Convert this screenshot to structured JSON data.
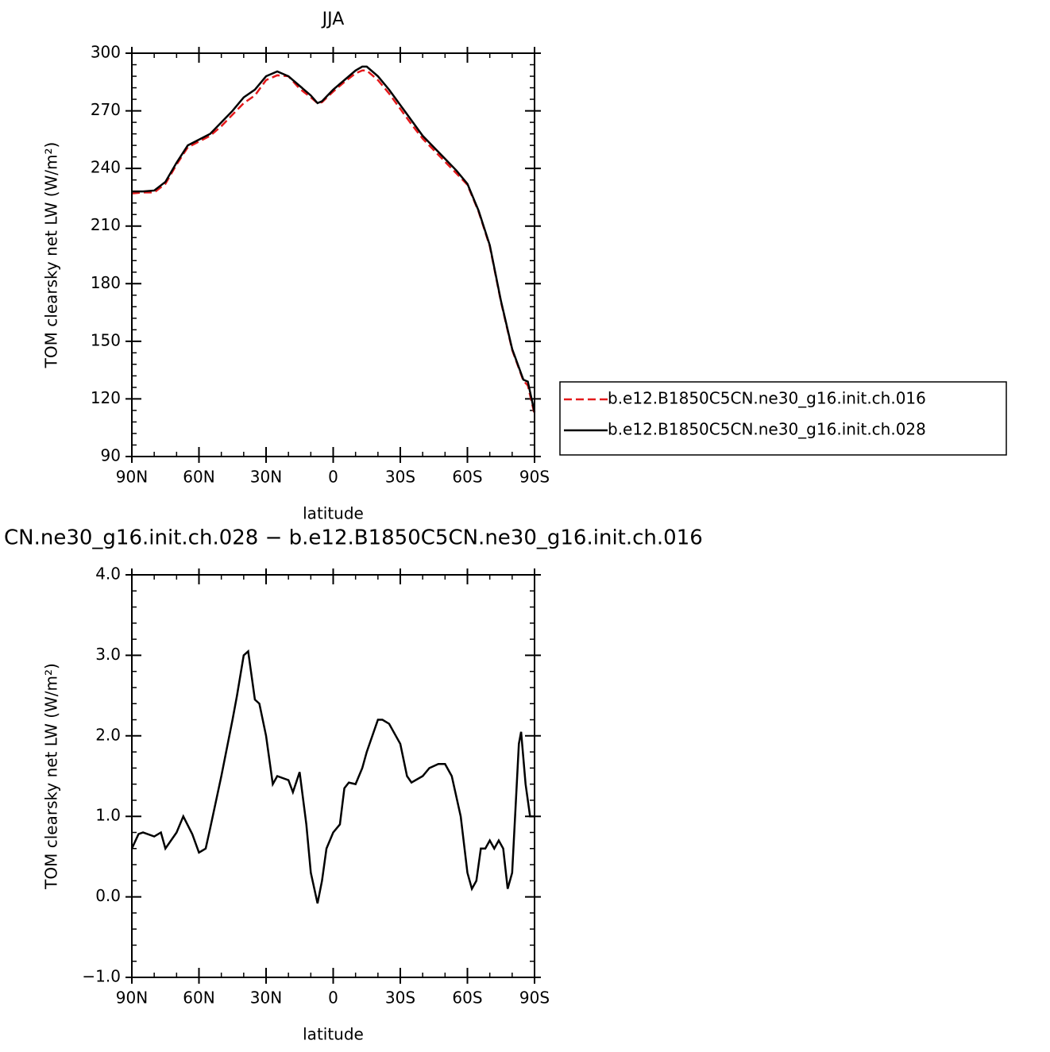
{
  "chart_data": [
    {
      "type": "line",
      "title": "JJA",
      "xlabel": "latitude",
      "ylabel": "TOM clearsky net LW (W/m²)",
      "x": [
        90,
        85,
        80,
        75,
        70,
        65,
        60,
        55,
        50,
        45,
        40,
        35,
        30,
        25,
        20,
        15,
        10,
        7,
        5,
        0,
        -5,
        -10,
        -13,
        -15,
        -20,
        -25,
        -30,
        -35,
        -40,
        -45,
        -50,
        -55,
        -60,
        -65,
        -70,
        -75,
        -80,
        -85,
        -87,
        -90
      ],
      "series": [
        {
          "name": "b.e12.B1850C5CN.ne30_g16.init.ch.016",
          "color": "#e41a1c",
          "linestyle": "dashed",
          "values": [
            227,
            227.5,
            227.5,
            232,
            242,
            251,
            254,
            257,
            262,
            268,
            274,
            278,
            286,
            288.5,
            288,
            281.5,
            277,
            274,
            274.5,
            280,
            285,
            289.5,
            291,
            291,
            286,
            279,
            271,
            263,
            255.5,
            249.5,
            243.5,
            237.5,
            231.5,
            217.5,
            199.5,
            170.5,
            145.5,
            129.5,
            127,
            112
          ]
        },
        {
          "name": "b.e12.B1850C5CN.ne30_g16.init.ch.028",
          "color": "#000000",
          "linestyle": "solid",
          "values": [
            228,
            228,
            228.5,
            233,
            243,
            252,
            255,
            258,
            264,
            270,
            277,
            281,
            288,
            290.5,
            288,
            283,
            278,
            274,
            275,
            281,
            286,
            291,
            293,
            293,
            288,
            281,
            273,
            265,
            257,
            251,
            245,
            239,
            232,
            218,
            200,
            171,
            146,
            130,
            129,
            113
          ]
        }
      ],
      "xlim": [
        90,
        -90
      ],
      "xticks": [
        {
          "value": 90,
          "label": "90N"
        },
        {
          "value": 60,
          "label": "60N"
        },
        {
          "value": 30,
          "label": "30N"
        },
        0,
        {
          "value": -30,
          "label": "30S"
        },
        {
          "value": -60,
          "label": "60S"
        },
        {
          "value": -90,
          "label": "90S"
        }
      ],
      "ylim": [
        90,
        300
      ],
      "yticks": [
        90,
        120,
        150,
        180,
        210,
        240,
        270,
        300
      ],
      "legend": "right"
    },
    {
      "type": "line",
      "title": "CN.ne30_g16.init.ch.028 − b.e12.B1850C5CN.ne30_g16.init.ch.016",
      "xlabel": "latitude",
      "ylabel": "TOM clearsky net LW (W/m²)",
      "x": [
        90,
        87,
        85,
        80,
        77,
        75,
        70,
        67,
        63,
        60,
        57,
        55,
        50,
        45,
        43,
        40,
        38,
        35,
        33,
        30,
        27,
        25,
        20,
        18,
        15,
        12,
        10,
        7,
        5,
        3,
        0,
        -3,
        -5,
        -7,
        -10,
        -13,
        -15,
        -20,
        -22,
        -25,
        -28,
        -30,
        -33,
        -35,
        -40,
        -43,
        -47,
        -50,
        -53,
        -57,
        -60,
        -62,
        -64,
        -66,
        -68,
        -70,
        -72,
        -74,
        -76,
        -78,
        -80,
        -83,
        -84,
        -86,
        -88,
        -90
      ],
      "series": [
        {
          "name": null,
          "color": "#000000",
          "linestyle": "solid",
          "values": [
            0.6,
            0.78,
            0.8,
            0.75,
            0.8,
            0.6,
            0.8,
            1.0,
            0.78,
            0.55,
            0.6,
            0.85,
            1.5,
            2.2,
            2.5,
            3.0,
            3.05,
            2.45,
            2.4,
            2.0,
            1.4,
            1.5,
            1.45,
            1.3,
            1.55,
            0.9,
            0.3,
            -0.08,
            0.2,
            0.6,
            0.8,
            0.9,
            1.35,
            1.42,
            1.4,
            1.6,
            1.8,
            2.2,
            2.2,
            2.15,
            2.0,
            1.9,
            1.5,
            1.42,
            1.5,
            1.6,
            1.65,
            1.65,
            1.5,
            1.0,
            0.3,
            0.1,
            0.2,
            0.6,
            0.6,
            0.7,
            0.6,
            0.7,
            0.6,
            0.1,
            0.3,
            1.9,
            2.05,
            1.4,
            1.0,
            1.0
          ]
        }
      ],
      "xlim": [
        90,
        -90
      ],
      "xticks": [
        {
          "value": 90,
          "label": "90N"
        },
        {
          "value": 60,
          "label": "60N"
        },
        {
          "value": 30,
          "label": "30N"
        },
        0,
        {
          "value": -30,
          "label": "30S"
        },
        {
          "value": -60,
          "label": "60S"
        },
        {
          "value": -90,
          "label": "90S"
        }
      ],
      "ylim": [
        -1,
        4
      ],
      "yticks": [
        {
          "value": -1,
          "label": "−1.0"
        },
        {
          "value": 0,
          "label": "0.0"
        },
        {
          "value": 1,
          "label": "1.0"
        },
        {
          "value": 2,
          "label": "2.0"
        },
        {
          "value": 3,
          "label": "3.0"
        },
        {
          "value": 4,
          "label": "4.0"
        }
      ]
    }
  ]
}
